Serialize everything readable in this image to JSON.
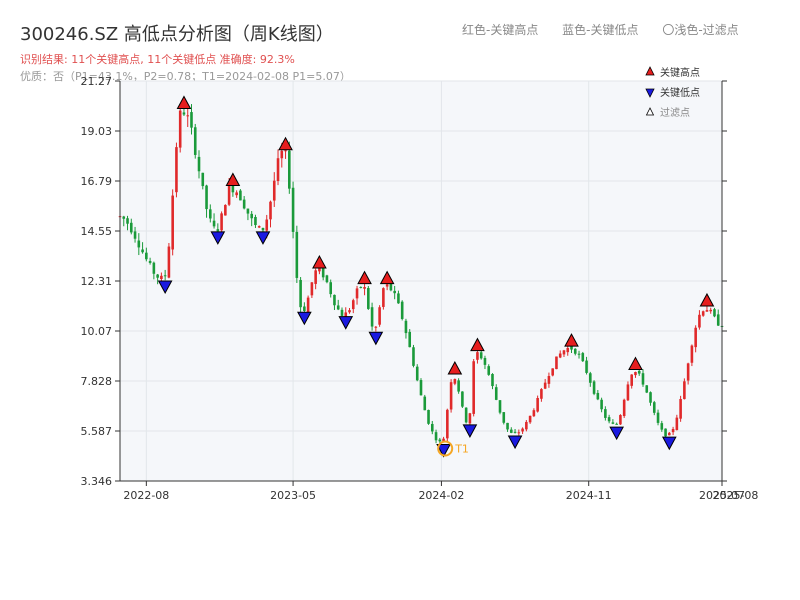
{
  "title": "300246.SZ 高低点分析图（周K线图）",
  "subtitle": "识别结果: 11个关键高点, 11个关键低点   准确度: 92.3%",
  "note": "优质：否（P1=43.1%，P2=0.78；T1=2024-02-08 P1=5.07）",
  "top_legend": {
    "red": "红色-关键高点",
    "blue": "蓝色-关键低点",
    "light": "〇浅色-过滤点"
  },
  "colors": {
    "up": "#e0292a",
    "down": "#1a9a3a",
    "high_marker": "#e61e1e",
    "low_marker": "#1a1ae0",
    "t1_ring": "#f5a623",
    "plot_bg": "#f5f7fa",
    "grid": "#e2e6ea",
    "axis": "#333333"
  },
  "chart_data": {
    "type": "candlestick",
    "xlabel": "",
    "ylabel": "",
    "ylim": [
      3.346,
      21.27
    ],
    "xlim": [
      "2022-06-13",
      "2025-07-07"
    ],
    "yticks": [
      "3.346",
      "5.587",
      "7.828",
      "10.07",
      "12.31",
      "14.55",
      "16.79",
      "19.03",
      "21.27"
    ],
    "xticks": [
      {
        "date": "2022-08-01",
        "label": "2022-08"
      },
      {
        "date": "2023-05-01",
        "label": "2023-05"
      },
      {
        "date": "2024-02-01",
        "label": "2024-02"
      },
      {
        "date": "2024-11-01",
        "label": "2024-11"
      },
      {
        "date": "2025-07-07",
        "label": "2025-07"
      },
      {
        "date": "2025-08-01",
        "label": "2025-08"
      }
    ],
    "legend": {
      "position": "top-right",
      "entries": [
        {
          "label": "关键高点",
          "kind": "high"
        },
        {
          "label": "关键低点",
          "kind": "low"
        },
        {
          "label": "过滤点",
          "kind": "filtered"
        }
      ]
    },
    "key_highs": [
      {
        "date": "2022-10-10",
        "value": 19.95
      },
      {
        "date": "2023-01-09",
        "value": 16.5
      },
      {
        "date": "2023-04-17",
        "value": 18.1
      },
      {
        "date": "2023-06-19",
        "value": 12.8
      },
      {
        "date": "2023-09-11",
        "value": 12.1
      },
      {
        "date": "2023-10-23",
        "value": 12.1
      },
      {
        "date": "2024-02-26",
        "value": 8.05
      },
      {
        "date": "2024-04-08",
        "value": 9.1
      },
      {
        "date": "2024-09-30",
        "value": 9.3
      },
      {
        "date": "2025-01-27",
        "value": 8.25
      },
      {
        "date": "2025-06-09",
        "value": 11.1
      }
    ],
    "key_lows": [
      {
        "date": "2022-09-05",
        "value": 12.4
      },
      {
        "date": "2022-12-12",
        "value": 14.6
      },
      {
        "date": "2023-03-06",
        "value": 14.6
      },
      {
        "date": "2023-05-22",
        "value": 11.0
      },
      {
        "date": "2023-08-07",
        "value": 10.8
      },
      {
        "date": "2023-10-02",
        "value": 10.1
      },
      {
        "date": "2024-02-05",
        "value": 5.07
      },
      {
        "date": "2024-03-25",
        "value": 5.95
      },
      {
        "date": "2024-06-17",
        "value": 5.45
      },
      {
        "date": "2024-12-23",
        "value": 5.85
      },
      {
        "date": "2025-03-31",
        "value": 5.4
      }
    ],
    "t1": {
      "date": "2024-02-08",
      "value": 5.07,
      "label": "T1"
    }
  }
}
